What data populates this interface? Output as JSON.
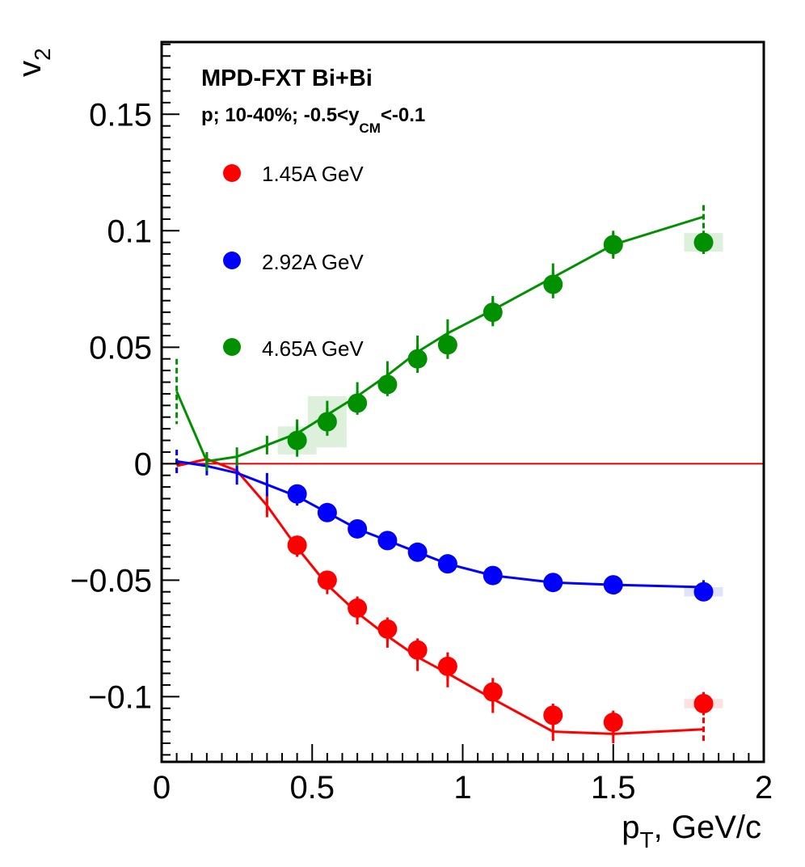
{
  "chart_data": {
    "type": "scatter",
    "title": "MPD-FXT Bi+Bi",
    "subtitle": {
      "main": "p; 10-40%; -0.5<y",
      "sub": "CM",
      "tail": "<-0.1"
    },
    "xlabel": {
      "main": "p",
      "sub": "T",
      "tail": ", GeV/c"
    },
    "ylabel": {
      "main": "v",
      "sub": "2"
    },
    "xlim": [
      0,
      2
    ],
    "ylim": [
      -0.128,
      0.181
    ],
    "x_ticks": [
      {
        "value": 0,
        "label": "0"
      },
      {
        "value": 0.5,
        "label": "0.5"
      },
      {
        "value": 1,
        "label": "1"
      },
      {
        "value": 1.5,
        "label": "1.5"
      },
      {
        "value": 2,
        "label": "2"
      }
    ],
    "y_ticks": [
      {
        "value": -0.1,
        "label": "−0.1"
      },
      {
        "value": -0.05,
        "label": "−0.05"
      },
      {
        "value": 0,
        "label": "0"
      },
      {
        "value": 0.05,
        "label": "0.05"
      },
      {
        "value": 0.1,
        "label": "0.1"
      },
      {
        "value": 0.15,
        "label": "0.15"
      }
    ],
    "reference_line": {
      "y": 0,
      "color": "#e00000"
    },
    "legend_position": "top-left",
    "series": [
      {
        "name": "1.45A GeV",
        "color": "#ff0000",
        "points": [
          {
            "x": 0.45,
            "y": -0.035,
            "err": 0.004
          },
          {
            "x": 0.55,
            "y": -0.05,
            "err": 0.004
          },
          {
            "x": 0.65,
            "y": -0.062,
            "err": 0.005
          },
          {
            "x": 0.75,
            "y": -0.071,
            "err": 0.005
          },
          {
            "x": 0.85,
            "y": -0.08,
            "err": 0.005
          },
          {
            "x": 0.95,
            "y": -0.087,
            "err": 0.006
          },
          {
            "x": 1.1,
            "y": -0.098,
            "err": 0.006
          },
          {
            "x": 1.3,
            "y": -0.108,
            "err": 0.005
          },
          {
            "x": 1.5,
            "y": -0.111,
            "err": 0.005
          },
          {
            "x": 1.8,
            "y": -0.103,
            "err": 0.005,
            "syst": 0.002
          }
        ],
        "model": [
          {
            "x": 0.05,
            "y": -0.001,
            "err": 0.003
          },
          {
            "x": 0.15,
            "y": 0.002,
            "err": 0.002
          },
          {
            "x": 0.25,
            "y": -0.003,
            "err": 0.002
          },
          {
            "x": 0.35,
            "y": -0.018,
            "err": 0.005
          },
          {
            "x": 0.45,
            "y": -0.036,
            "err": 0.004
          },
          {
            "x": 0.55,
            "y": -0.052,
            "err": 0.004
          },
          {
            "x": 0.65,
            "y": -0.064,
            "err": 0.005
          },
          {
            "x": 0.75,
            "y": -0.074,
            "err": 0.005
          },
          {
            "x": 0.85,
            "y": -0.083,
            "err": 0.006
          },
          {
            "x": 0.95,
            "y": -0.09,
            "err": 0.006
          },
          {
            "x": 1.1,
            "y": -0.101,
            "err": 0.006
          },
          {
            "x": 1.3,
            "y": -0.115,
            "err": 0.004
          },
          {
            "x": 1.5,
            "y": -0.116,
            "err": 0.004
          },
          {
            "x": 1.8,
            "y": -0.114,
            "err": 0.005
          }
        ]
      },
      {
        "name": "2.92A GeV",
        "color": "#0000ff",
        "points": [
          {
            "x": 0.45,
            "y": -0.013,
            "err": 0.004
          },
          {
            "x": 0.55,
            "y": -0.021,
            "err": 0.004
          },
          {
            "x": 0.65,
            "y": -0.028,
            "err": 0.004
          },
          {
            "x": 0.75,
            "y": -0.033,
            "err": 0.004
          },
          {
            "x": 0.85,
            "y": -0.038,
            "err": 0.004
          },
          {
            "x": 0.95,
            "y": -0.043,
            "err": 0.004
          },
          {
            "x": 1.1,
            "y": -0.048,
            "err": 0.003
          },
          {
            "x": 1.3,
            "y": -0.051,
            "err": 0.003
          },
          {
            "x": 1.5,
            "y": -0.052,
            "err": 0.003
          },
          {
            "x": 1.8,
            "y": -0.055,
            "err": 0.003,
            "syst": 0.002
          }
        ],
        "model": [
          {
            "x": 0.05,
            "y": 0.001,
            "err": 0.005
          },
          {
            "x": 0.15,
            "y": -0.001,
            "err": 0.004
          },
          {
            "x": 0.25,
            "y": -0.004,
            "err": 0.005
          },
          {
            "x": 0.35,
            "y": -0.009,
            "err": 0.005
          },
          {
            "x": 0.45,
            "y": -0.014,
            "err": 0.004
          },
          {
            "x": 0.55,
            "y": -0.021,
            "err": 0.004
          },
          {
            "x": 0.65,
            "y": -0.028,
            "err": 0.004
          },
          {
            "x": 0.75,
            "y": -0.033,
            "err": 0.004
          },
          {
            "x": 0.85,
            "y": -0.038,
            "err": 0.004
          },
          {
            "x": 0.95,
            "y": -0.043,
            "err": 0.003
          },
          {
            "x": 1.1,
            "y": -0.048,
            "err": 0.003
          },
          {
            "x": 1.3,
            "y": -0.051,
            "err": 0.003
          },
          {
            "x": 1.5,
            "y": -0.052,
            "err": 0.003
          },
          {
            "x": 1.8,
            "y": -0.053,
            "err": 0.003
          }
        ]
      },
      {
        "name": "4.65A GeV",
        "color": "#009000",
        "points": [
          {
            "x": 0.45,
            "y": 0.01,
            "err": 0.007,
            "syst": 0.006
          },
          {
            "x": 0.55,
            "y": 0.018,
            "err": 0.006,
            "syst": 0.011
          },
          {
            "x": 0.65,
            "y": 0.026,
            "err": 0.005
          },
          {
            "x": 0.75,
            "y": 0.034,
            "err": 0.005
          },
          {
            "x": 0.85,
            "y": 0.045,
            "err": 0.006
          },
          {
            "x": 0.95,
            "y": 0.051,
            "err": 0.006
          },
          {
            "x": 1.1,
            "y": 0.065,
            "err": 0.006
          },
          {
            "x": 1.3,
            "y": 0.077,
            "err": 0.006
          },
          {
            "x": 1.5,
            "y": 0.094,
            "err": 0.006
          },
          {
            "x": 1.8,
            "y": 0.095,
            "err": 0.005,
            "syst": 0.004
          }
        ],
        "model": [
          {
            "x": 0.05,
            "y": 0.031,
            "err": 0.014
          },
          {
            "x": 0.15,
            "y": 0.001,
            "err": 0.004
          },
          {
            "x": 0.25,
            "y": 0.003,
            "err": 0.004
          },
          {
            "x": 0.35,
            "y": 0.008,
            "err": 0.004
          },
          {
            "x": 0.45,
            "y": 0.013,
            "err": 0.006
          },
          {
            "x": 0.55,
            "y": 0.021,
            "err": 0.006
          },
          {
            "x": 0.65,
            "y": 0.029,
            "err": 0.006
          },
          {
            "x": 0.75,
            "y": 0.038,
            "err": 0.006
          },
          {
            "x": 0.85,
            "y": 0.048,
            "err": 0.007
          },
          {
            "x": 0.95,
            "y": 0.056,
            "err": 0.006
          },
          {
            "x": 1.1,
            "y": 0.066,
            "err": 0.006
          },
          {
            "x": 1.3,
            "y": 0.08,
            "err": 0.006
          },
          {
            "x": 1.5,
            "y": 0.094,
            "err": 0.005
          },
          {
            "x": 1.8,
            "y": 0.106,
            "err": 0.005
          }
        ]
      }
    ]
  }
}
